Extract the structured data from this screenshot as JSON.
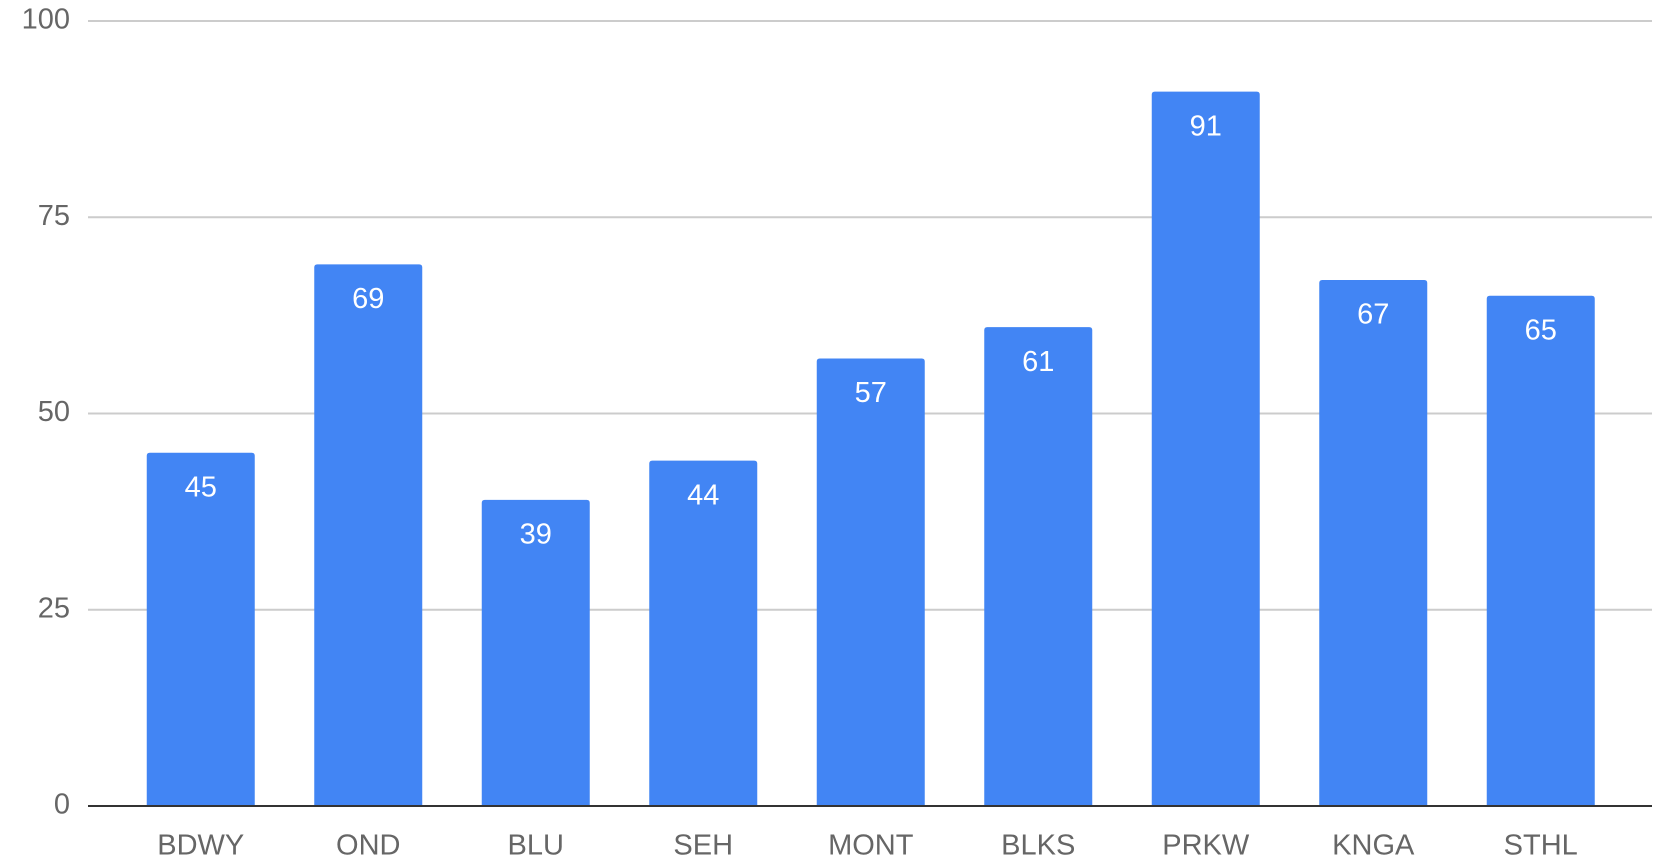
{
  "chart_data": {
    "type": "bar",
    "categories": [
      "BDWY",
      "OND",
      "BLU",
      "SEH",
      "MONT",
      "BLKS",
      "PRKW",
      "KNGA",
      "STHL"
    ],
    "values": [
      45,
      69,
      39,
      44,
      57,
      61,
      91,
      67,
      65
    ],
    "color": "#4285f4",
    "ylim": [
      0,
      100
    ],
    "yticks": [
      0,
      25,
      50,
      75,
      100
    ],
    "grid": true
  }
}
